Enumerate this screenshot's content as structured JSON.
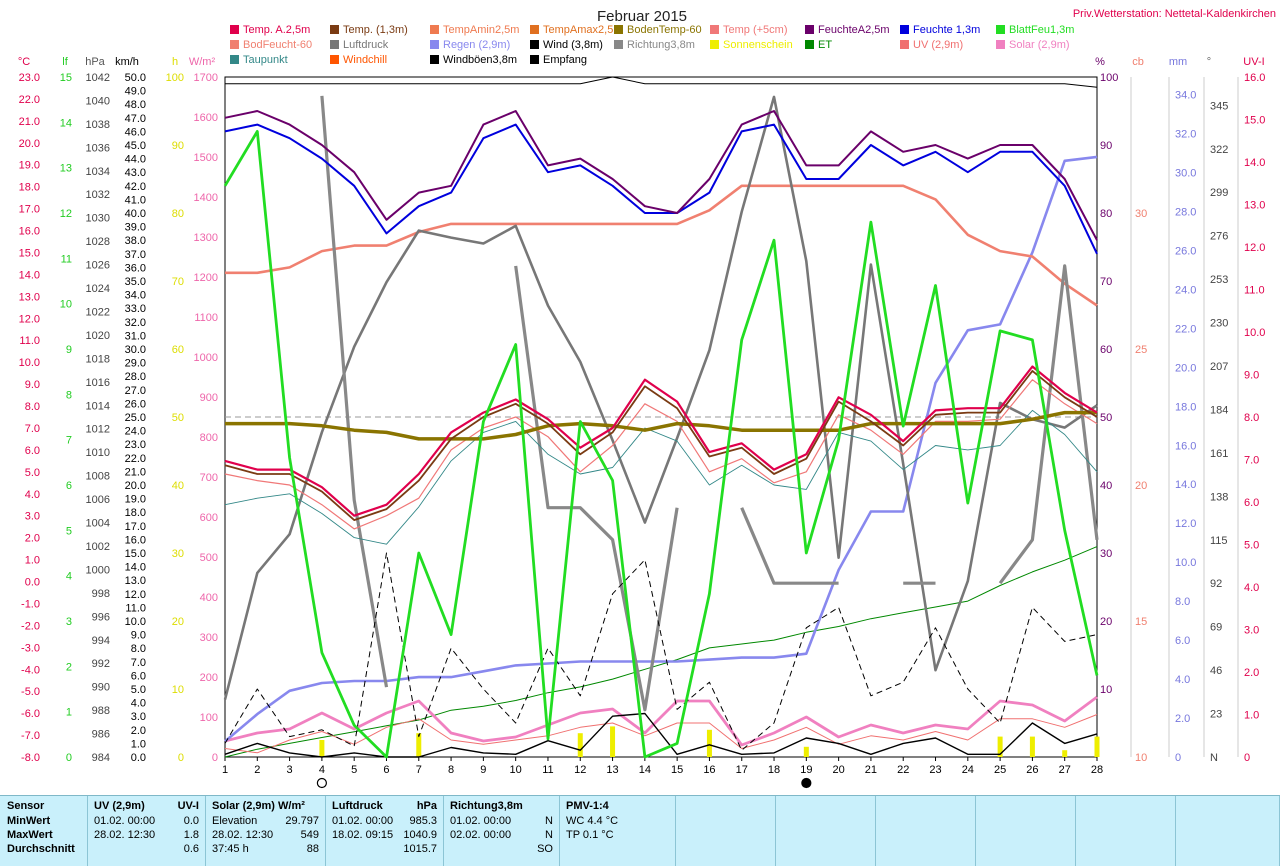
{
  "title": "Februar 2015",
  "station": "Priv.Wetterstation: Nettetal-Kaldenkirchen",
  "left_axis_units": {
    "temp": "°C",
    "lf": "lf",
    "hpa": "hPa",
    "kmh": "km/h",
    "h": "h",
    "wm2": "W/m²"
  },
  "right_axis_units": {
    "pct": "%",
    "cb": "cb",
    "mm": "mm",
    "deg": "°",
    "uvi": "UV-I"
  },
  "legend": [
    {
      "label": "Temp. A.2,5m",
      "color": "#e0004c"
    },
    {
      "label": "Temp. (1,3m)",
      "color": "#7a3b13"
    },
    {
      "label": "TempAmin2,5m",
      "color": "#ef7a50"
    },
    {
      "label": "TempAmax2,5m",
      "color": "#e07020"
    },
    {
      "label": "BodenTemp-60",
      "color": "#8a7400"
    },
    {
      "label": "Temp (+5cm)",
      "color": "#f07878"
    },
    {
      "label": "FeuchteA2,5m",
      "color": "#6a006a"
    },
    {
      "label": "Feuchte 1,3m",
      "color": "#0000dd"
    },
    {
      "label": "BlattFeu1,3m",
      "color": "#22dd22"
    },
    {
      "label": "BodFeucht-60",
      "color": "#f08070"
    },
    {
      "label": "Luftdruck",
      "color": "#777777"
    },
    {
      "label": "Regen (2,9m)",
      "color": "#8888ee"
    },
    {
      "label": "Wind (3,8m)",
      "color": "#000000"
    },
    {
      "label": "Richtung3,8m",
      "color": "#888888"
    },
    {
      "label": "Sonnenschein",
      "color": "#eeee00"
    },
    {
      "label": "ET",
      "color": "#008800"
    },
    {
      "label": "UV (2,9m)",
      "color": "#f07070"
    },
    {
      "label": "Solar (2,9m)",
      "color": "#f080c0"
    },
    {
      "label": "Taupunkt",
      "color": "#338888"
    },
    {
      "label": "Windchill",
      "color": "#ff5500"
    },
    {
      "label": "Windböen3,8m",
      "color": "#000000"
    },
    {
      "label": "Empfang",
      "color": "#000000"
    }
  ],
  "axes": {
    "temp_ticks": [
      "23.0",
      "22.0",
      "21.0",
      "20.0",
      "19.0",
      "18.0",
      "17.0",
      "16.0",
      "15.0",
      "14.0",
      "13.0",
      "12.0",
      "11.0",
      "10.0",
      "9.0",
      "8.0",
      "7.0",
      "6.0",
      "5.0",
      "4.0",
      "3.0",
      "2.0",
      "1.0",
      "0.0",
      "-1.0",
      "-2.0",
      "-3.0",
      "-4.0",
      "-5.0",
      "-6.0",
      "-7.0",
      "-8.0"
    ],
    "lf_ticks": [
      "15",
      "14",
      "13",
      "12",
      "11",
      "10",
      "9",
      "8",
      "7",
      "6",
      "5",
      "4",
      "3",
      "2",
      "1",
      "0"
    ],
    "hpa_ticks": [
      "1042",
      "1040",
      "1038",
      "1036",
      "1034",
      "1032",
      "1030",
      "1028",
      "1026",
      "1024",
      "1022",
      "1020",
      "1018",
      "1016",
      "1014",
      "1012",
      "1010",
      "1008",
      "1006",
      "1004",
      "1002",
      "1000",
      "998",
      "996",
      "994",
      "992",
      "990",
      "988",
      "986",
      "984"
    ],
    "kmh_ticks": [
      "50.0",
      "49.0",
      "48.0",
      "47.0",
      "46.0",
      "45.0",
      "44.0",
      "43.0",
      "42.0",
      "41.0",
      "40.0",
      "39.0",
      "38.0",
      "37.0",
      "36.0",
      "35.0",
      "34.0",
      "33.0",
      "32.0",
      "31.0",
      "30.0",
      "29.0",
      "28.0",
      "27.0",
      "26.0",
      "25.0",
      "24.0",
      "23.0",
      "22.0",
      "21.0",
      "20.0",
      "19.0",
      "18.0",
      "17.0",
      "16.0",
      "15.0",
      "14.0",
      "13.0",
      "12.0",
      "11.0",
      "10.0",
      "9.0",
      "8.0",
      "7.0",
      "6.0",
      "5.0",
      "4.0",
      "3.0",
      "2.0",
      "1.0",
      "0.0"
    ],
    "h_ticks": [
      "100",
      "90",
      "80",
      "70",
      "60",
      "50",
      "40",
      "30",
      "20",
      "10",
      "0"
    ],
    "wm2_ticks": [
      "1700",
      "1600",
      "1500",
      "1400",
      "1300",
      "1200",
      "1100",
      "1000",
      "900",
      "800",
      "700",
      "600",
      "500",
      "400",
      "300",
      "200",
      "100",
      "0"
    ],
    "pct_ticks": [
      "100",
      "90",
      "80",
      "70",
      "60",
      "50",
      "40",
      "30",
      "20",
      "10"
    ],
    "cb_ticks": [
      "30",
      "25",
      "20",
      "15",
      "10"
    ],
    "mm_ticks": [
      "34.0",
      "32.0",
      "30.0",
      "28.0",
      "26.0",
      "24.0",
      "22.0",
      "20.0",
      "18.0",
      "16.0",
      "14.0",
      "12.0",
      "10.0",
      "8.0",
      "6.0",
      "4.0",
      "2.0",
      "0"
    ],
    "deg_ticks": [
      "345",
      "322",
      "299",
      "276",
      "253",
      "230",
      "207",
      "184",
      "161",
      "138",
      "115",
      "92",
      "69",
      "46",
      "23",
      "N"
    ],
    "uvi_ticks": [
      "16.0",
      "15.0",
      "14.0",
      "13.0",
      "12.0",
      "11.0",
      "10.0",
      "9.0",
      "8.0",
      "7.0",
      "6.0",
      "5.0",
      "4.0",
      "3.0",
      "2.0",
      "1.0",
      "0"
    ],
    "x_ticks": [
      "1",
      "2",
      "3",
      "4",
      "5",
      "6",
      "7",
      "8",
      "9",
      "10",
      "11",
      "12",
      "13",
      "14",
      "15",
      "16",
      "17",
      "18",
      "19",
      "20",
      "21",
      "22",
      "23",
      "24",
      "25",
      "26",
      "27",
      "28"
    ]
  },
  "chart_data": {
    "type": "line",
    "title": "Februar 2015",
    "x": [
      1,
      2,
      3,
      4,
      5,
      6,
      7,
      8,
      9,
      10,
      11,
      12,
      13,
      14,
      15,
      16,
      17,
      18,
      19,
      20,
      21,
      22,
      23,
      24,
      25,
      26,
      27,
      28
    ],
    "xlim": [
      1,
      28
    ],
    "moon_markers": [
      {
        "day": 4,
        "symbol": "○"
      },
      {
        "day": 19,
        "symbol": "●"
      }
    ],
    "series": [
      {
        "name": "Temp. A.2,5m",
        "axis": "temp",
        "color": "#e0004c",
        "width": 2.2,
        "values": [
          5.5,
          5.1,
          5.1,
          4.3,
          3.0,
          3.5,
          4.9,
          6.8,
          7.7,
          8.3,
          7.4,
          6.1,
          7.0,
          9.2,
          8.2,
          5.9,
          6.3,
          5.1,
          5.8,
          8.4,
          7.6,
          6.4,
          7.8,
          7.9,
          7.9,
          9.8,
          8.6,
          7.7
        ]
      },
      {
        "name": "Temp. (1,3m)",
        "axis": "temp",
        "color": "#7a3b13",
        "width": 1.8,
        "values": [
          5.3,
          4.9,
          4.9,
          4.1,
          2.8,
          3.3,
          4.6,
          6.5,
          7.5,
          8.1,
          7.2,
          5.8,
          6.8,
          8.9,
          7.9,
          5.7,
          6.1,
          4.9,
          5.6,
          8.2,
          7.3,
          6.2,
          7.6,
          7.7,
          7.7,
          9.6,
          8.4,
          7.5
        ]
      },
      {
        "name": "Temp (+5cm)",
        "axis": "temp",
        "color": "#f07878",
        "width": 1.2,
        "values": [
          4.9,
          4.6,
          4.4,
          3.5,
          2.4,
          3.0,
          3.8,
          6.0,
          7.0,
          7.5,
          6.6,
          5.0,
          6.2,
          8.1,
          7.3,
          5.0,
          5.6,
          4.5,
          5.0,
          7.6,
          6.9,
          5.8,
          7.3,
          7.3,
          7.4,
          9.2,
          8.1,
          7.2
        ]
      },
      {
        "name": "Taupunkt",
        "axis": "temp",
        "color": "#338888",
        "width": 0.9,
        "values": [
          3.5,
          3.8,
          4.0,
          3.1,
          2.0,
          1.7,
          3.4,
          5.5,
          6.8,
          7.3,
          5.8,
          4.9,
          5.2,
          7.0,
          6.4,
          4.4,
          5.3,
          4.4,
          4.2,
          6.8,
          6.4,
          5.1,
          6.2,
          6.0,
          6.2,
          7.8,
          6.7,
          5.0
        ]
      },
      {
        "name": "BodenTemp-60",
        "axis": "temp",
        "color": "#8a7400",
        "width": 3.5,
        "values": [
          7.2,
          7.2,
          7.2,
          7.1,
          6.9,
          6.8,
          6.5,
          6.5,
          6.5,
          6.7,
          7.1,
          7.2,
          7.1,
          6.9,
          7.2,
          7.1,
          6.9,
          6.9,
          6.9,
          6.9,
          7.2,
          7.2,
          7.2,
          7.2,
          7.2,
          7.4,
          7.7,
          7.7
        ]
      },
      {
        "name": "FeuchteA2,5m",
        "axis": "pct",
        "color": "#6a006a",
        "width": 2,
        "values": [
          94,
          95,
          93,
          90,
          86,
          79,
          83,
          84,
          93,
          95,
          87,
          88,
          85,
          81,
          80,
          85,
          93,
          95,
          87,
          87,
          92,
          89,
          90,
          88,
          90,
          90,
          85,
          76
        ]
      },
      {
        "name": "Feuchte 1,3m",
        "axis": "pct",
        "color": "#0000dd",
        "width": 2,
        "values": [
          92,
          93,
          91,
          88,
          84,
          77,
          81,
          83,
          91,
          93,
          86,
          87,
          84,
          80,
          80,
          83,
          92,
          93,
          85,
          85,
          90,
          87,
          89,
          86,
          89,
          89,
          84,
          74
        ]
      },
      {
        "name": "BlattFeu1,3m",
        "axis": "lf",
        "color": "#22dd22",
        "width": 2.8,
        "values": [
          12.6,
          13.8,
          6.6,
          2.3,
          0.7,
          0.0,
          4.5,
          2.7,
          7.4,
          9.1,
          0.4,
          7.4,
          6.1,
          0.0,
          0.3,
          3.6,
          9.2,
          11.4,
          4.5,
          7.0,
          11.8,
          7.3,
          10.4,
          5.6,
          9.4,
          9.2,
          5.0,
          1.8
        ]
      },
      {
        "name": "Luftdruck",
        "axis": "hpa",
        "color": "#777777",
        "width": 2.6,
        "values": [
          988.9,
          999.7,
          1003.0,
          1011.7,
          1019.0,
          1024.5,
          1028.9,
          1028.3,
          1027.8,
          1029.3,
          1022.5,
          1017.7,
          1011.0,
          1004.0,
          1011.2,
          1018.7,
          1030.5,
          1040.3,
          1026.3,
          1001.0,
          1026.0,
          1009.0,
          991.4,
          999.0,
          1014.2,
          1012.8,
          1012.1,
          1014.0
        ]
      },
      {
        "name": "Richtung3,8m",
        "axis": "deg",
        "color": "#888888",
        "width": 3.2,
        "values": [
          null,
          null,
          null,
          350,
          136,
          37,
          null,
          260,
          null,
          260,
          132,
          132,
          115,
          25,
          132,
          null,
          132,
          92,
          92,
          92,
          null,
          92,
          92,
          null,
          92,
          115,
          260,
          115
        ]
      },
      {
        "name": "Regen (2,9m)",
        "axis": "mm",
        "color": "#8888ee",
        "width": 2.6,
        "values": [
          0.8,
          2.2,
          3.4,
          3.8,
          3.9,
          3.9,
          4.1,
          4.1,
          4.4,
          4.7,
          4.8,
          4.9,
          4.9,
          4.9,
          4.9,
          5.0,
          5.1,
          5.1,
          5.3,
          9.6,
          12.6,
          12.6,
          19.2,
          21.9,
          22.2,
          25.9,
          30.6,
          30.8
        ]
      },
      {
        "name": "BodFeucht-60",
        "axis": "cb",
        "color": "#f08070",
        "width": 2.6,
        "values": [
          27.8,
          27.8,
          28.0,
          28.6,
          28.8,
          28.8,
          29.3,
          29.6,
          29.6,
          29.6,
          29.6,
          29.6,
          29.6,
          29.6,
          29.6,
          30.1,
          31.0,
          31.0,
          31.0,
          31.0,
          31.0,
          31.0,
          30.5,
          29.2,
          28.6,
          28.4,
          27.4,
          26.6
        ]
      },
      {
        "name": "ET",
        "axis": "mm",
        "color": "#008800",
        "width": 1,
        "values": [
          0.0,
          0.4,
          0.7,
          1.0,
          1.3,
          1.6,
          1.9,
          2.4,
          2.6,
          2.9,
          3.3,
          3.6,
          4.0,
          4.5,
          5.0,
          5.6,
          5.8,
          6.0,
          6.4,
          6.7,
          7.1,
          7.4,
          7.7,
          8.0,
          8.8,
          9.5,
          10.1,
          10.8
        ]
      },
      {
        "name": "Wind (3,8m)",
        "axis": "kmh",
        "color": "#000000",
        "width": 1.4,
        "values": [
          0.2,
          1.0,
          0.3,
          0.0,
          0.3,
          0.0,
          0.0,
          0.7,
          0.3,
          0.2,
          1.2,
          0.5,
          3.0,
          3.2,
          0.2,
          0.9,
          0.2,
          0.3,
          1.4,
          1.0,
          0.2,
          1.0,
          1.4,
          0.2,
          0.2,
          2.5,
          1.0,
          1.7
        ]
      },
      {
        "name": "Windböen3,8m",
        "axis": "kmh",
        "color": "#000000",
        "width": 1,
        "dash": "6,4",
        "values": [
          1.0,
          5.0,
          1.5,
          2.0,
          0.8,
          15.0,
          1.5,
          8.0,
          5.0,
          2.5,
          8.0,
          4.5,
          12.0,
          14.5,
          3.5,
          5.5,
          0.5,
          2.5,
          9.5,
          11.0,
          4.5,
          5.5,
          9.5,
          5.0,
          2.5,
          11.0,
          8.5,
          9.0
        ]
      },
      {
        "name": "Empfang",
        "axis": "pct",
        "color": "#000000",
        "width": 1,
        "values": [
          99,
          99,
          99,
          99,
          99,
          99,
          99,
          99,
          99,
          99,
          99,
          99,
          100,
          99,
          99,
          99,
          99,
          99,
          99,
          99,
          99,
          99,
          99,
          99,
          99,
          99,
          99,
          98.5
        ]
      },
      {
        "name": "Solar (2,9m)",
        "axis": "wm2",
        "color": "#f080c0",
        "width": 2.8,
        "values": [
          40,
          60,
          70,
          110,
          70,
          110,
          140,
          60,
          40,
          50,
          80,
          110,
          120,
          60,
          140,
          140,
          30,
          60,
          100,
          50,
          80,
          60,
          80,
          70,
          140,
          130,
          90,
          150
        ]
      },
      {
        "name": "UV (2,9m)",
        "axis": "uvi",
        "color": "#f07070",
        "width": 1,
        "values": [
          0.2,
          0.1,
          0.4,
          0.6,
          0.3,
          0.7,
          0.9,
          0.4,
          0.3,
          0.4,
          0.5,
          0.7,
          0.8,
          0.5,
          0.8,
          0.8,
          0.2,
          0.4,
          0.7,
          0.3,
          0.5,
          0.4,
          0.6,
          0.4,
          0.9,
          0.9,
          0.7,
          1.0
        ]
      },
      {
        "name": "Sonnenschein",
        "axis": "h",
        "color": "#eeee00",
        "width": 5,
        "type": "bar",
        "values": [
          0,
          0,
          0,
          2.5,
          0,
          0,
          3.5,
          0,
          0,
          0,
          0,
          3.5,
          4.5,
          0,
          0,
          4.0,
          0,
          0,
          1.5,
          0,
          0,
          0,
          0,
          0,
          3.0,
          3.0,
          1.0,
          3.0
        ]
      }
    ],
    "reference_line": {
      "axis": "h",
      "value": 50,
      "dash": "6,4",
      "color": "#999999"
    }
  },
  "stats": {
    "columns": [
      {
        "header": "Sensor",
        "rows": [
          "MinWert",
          "MaxWert",
          "Durchschnitt"
        ]
      },
      {
        "header": "UV (2,9m)",
        "header2": "UV-I",
        "rows": [
          [
            "01.02.  00:00",
            "0.0"
          ],
          [
            "28.02.  12:30",
            "1.8"
          ],
          [
            "",
            "0.6"
          ]
        ]
      },
      {
        "header": "Solar (2,9m) W/m²",
        "rows": [
          [
            "Elevation",
            "29.797"
          ],
          [
            "28.02.  12:30",
            "549"
          ],
          [
            "37:45 h",
            "88"
          ]
        ]
      },
      {
        "header": "Luftdruck",
        "header2": "hPa",
        "rows": [
          [
            "01.02.  00:00",
            "985.3"
          ],
          [
            "18.02.  09:15",
            "1040.9"
          ],
          [
            "",
            "1015.7"
          ]
        ]
      },
      {
        "header": "Richtung3,8m",
        "rows": [
          [
            "01.02.  00:00",
            "N"
          ],
          [
            "02.02.  00:00",
            "N"
          ],
          [
            "",
            "SO"
          ]
        ]
      },
      {
        "header": "PMV-1:4",
        "rows": [
          [
            "WC 4.4 °C",
            ""
          ],
          [
            "TP 0.1 °C",
            ""
          ],
          [
            "",
            ""
          ]
        ]
      }
    ]
  }
}
